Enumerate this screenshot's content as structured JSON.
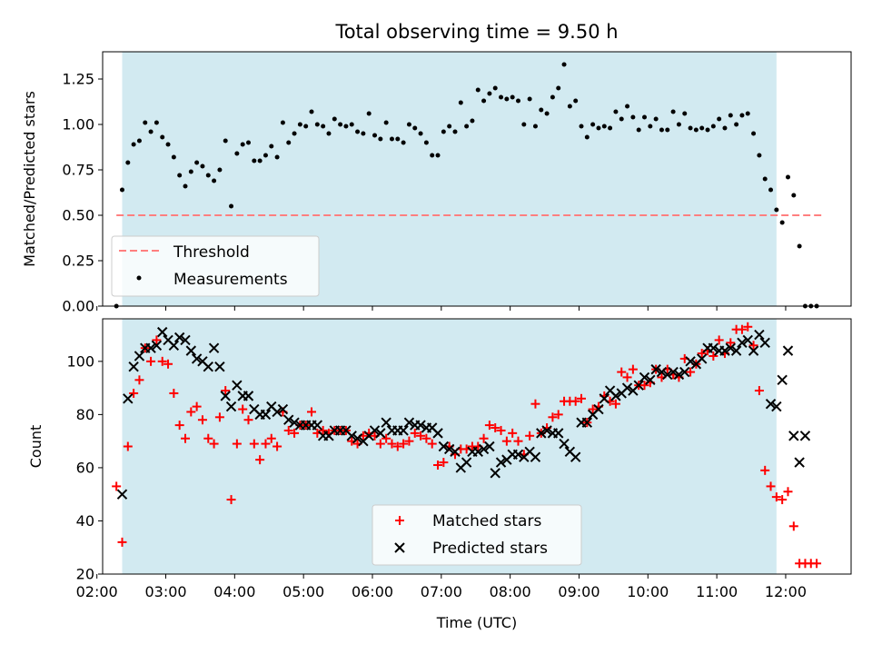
{
  "chart_data": [
    {
      "type": "scatter",
      "title": "Total observing time = 9.50 h",
      "xlabel": "",
      "ylabel": "Matched/Predicted stars",
      "xlim": [
        "02:05",
        "12:57"
      ],
      "ylim": [
        0,
        1.4
      ],
      "yticks": [
        0.0,
        0.25,
        0.5,
        0.75,
        1.0,
        1.25
      ],
      "ytick_labels": [
        "0.00",
        "0.25",
        "0.50",
        "0.75",
        "1.00",
        "1.25"
      ],
      "observing_window": [
        "02:22",
        "11:52"
      ],
      "window_color": "#add8e6",
      "threshold": {
        "name": "Threshold",
        "value": 0.5,
        "x_range": [
          "02:17",
          "12:32"
        ],
        "color": "#ff7f7f",
        "style": "dashed"
      },
      "legend": {
        "position": "lower-left",
        "entries": [
          "Threshold",
          "Measurements"
        ]
      },
      "series": [
        {
          "name": "Measurements",
          "color": "#000000",
          "marker": "dot",
          "x": [
            "02:17",
            "02:22",
            "02:27",
            "02:32",
            "02:37",
            "02:42",
            "02:47",
            "02:52",
            "02:57",
            "03:02",
            "03:07",
            "03:12",
            "03:17",
            "03:22",
            "03:27",
            "03:32",
            "03:37",
            "03:42",
            "03:47",
            "03:52",
            "03:57",
            "04:02",
            "04:07",
            "04:12",
            "04:17",
            "04:22",
            "04:27",
            "04:32",
            "04:37",
            "04:42",
            "04:47",
            "04:52",
            "04:57",
            "05:02",
            "05:07",
            "05:12",
            "05:17",
            "05:22",
            "05:27",
            "05:32",
            "05:37",
            "05:42",
            "05:47",
            "05:52",
            "05:57",
            "06:02",
            "06:07",
            "06:12",
            "06:17",
            "06:22",
            "06:27",
            "06:32",
            "06:37",
            "06:42",
            "06:47",
            "06:52",
            "06:57",
            "07:02",
            "07:07",
            "07:12",
            "07:17",
            "07:22",
            "07:27",
            "07:32",
            "07:37",
            "07:42",
            "07:47",
            "07:52",
            "07:57",
            "08:02",
            "08:07",
            "08:12",
            "08:17",
            "08:22",
            "08:27",
            "08:32",
            "08:37",
            "08:42",
            "08:47",
            "08:52",
            "08:57",
            "09:02",
            "09:07",
            "09:12",
            "09:17",
            "09:22",
            "09:27",
            "09:32",
            "09:37",
            "09:42",
            "09:47",
            "09:52",
            "09:57",
            "10:02",
            "10:07",
            "10:12",
            "10:17",
            "10:22",
            "10:27",
            "10:32",
            "10:37",
            "10:42",
            "10:47",
            "10:52",
            "10:57",
            "11:02",
            "11:07",
            "11:12",
            "11:17",
            "11:22",
            "11:27",
            "11:32",
            "11:37",
            "11:42",
            "11:47",
            "11:52",
            "11:57",
            "12:02",
            "12:07",
            "12:12",
            "12:17",
            "12:22",
            "12:27"
          ],
          "y": [
            0.0,
            0.64,
            0.79,
            0.89,
            0.91,
            1.01,
            0.96,
            1.01,
            0.93,
            0.89,
            0.82,
            0.72,
            0.66,
            0.74,
            0.79,
            0.77,
            0.72,
            0.69,
            0.75,
            0.91,
            0.55,
            0.84,
            0.89,
            0.9,
            0.8,
            0.8,
            0.83,
            0.88,
            0.82,
            1.01,
            0.9,
            0.95,
            1.0,
            0.99,
            1.07,
            1.0,
            0.99,
            0.95,
            1.03,
            1.0,
            0.99,
            1.0,
            0.96,
            0.95,
            1.06,
            0.94,
            0.92,
            1.01,
            0.92,
            0.92,
            0.9,
            1.0,
            0.98,
            0.95,
            0.9,
            0.83,
            0.83,
            0.96,
            0.99,
            0.96,
            1.12,
            0.99,
            1.02,
            1.19,
            1.13,
            1.17,
            1.2,
            1.15,
            1.14,
            1.15,
            1.13,
            1.0,
            1.14,
            0.99,
            1.08,
            1.06,
            1.15,
            1.2,
            1.33,
            1.1,
            1.13,
            0.99,
            0.93,
            1.0,
            0.98,
            0.99,
            0.98,
            1.07,
            1.03,
            1.1,
            1.04,
            0.97,
            1.04,
            0.99,
            1.03,
            0.97,
            0.97,
            1.07,
            1.0,
            1.06,
            0.98,
            0.97,
            0.98,
            0.97,
            0.99,
            1.03,
            0.98,
            1.05,
            1.0,
            1.05,
            1.06,
            0.95,
            0.83,
            0.7,
            0.64,
            0.53,
            0.46,
            0.71,
            0.61,
            0.33,
            0.0,
            0.0,
            0.0
          ]
        }
      ]
    },
    {
      "type": "scatter",
      "title": "",
      "xlabel": "Time (UTC)",
      "ylabel": "Count",
      "xlim": [
        "02:05",
        "12:57"
      ],
      "ylim": [
        20,
        116
      ],
      "yticks": [
        20,
        40,
        60,
        80,
        100
      ],
      "ytick_labels": [
        "20",
        "40",
        "60",
        "80",
        "100"
      ],
      "xticks": [
        "02:00",
        "03:00",
        "04:00",
        "05:00",
        "06:00",
        "07:00",
        "08:00",
        "09:00",
        "10:00",
        "11:00",
        "12:00"
      ],
      "observing_window": [
        "02:22",
        "11:52"
      ],
      "window_color": "#add8e6",
      "legend": {
        "position": "lower-center",
        "entries": [
          "Matched stars",
          "Predicted stars"
        ]
      },
      "series": [
        {
          "name": "Matched stars",
          "color": "#ff0000",
          "marker": "plus",
          "x": [
            "02:17",
            "02:22",
            "02:27",
            "02:32",
            "02:37",
            "02:42",
            "02:47",
            "02:52",
            "02:57",
            "03:02",
            "03:07",
            "03:12",
            "03:17",
            "03:22",
            "03:27",
            "03:32",
            "03:37",
            "03:42",
            "03:47",
            "03:52",
            "03:57",
            "04:02",
            "04:07",
            "04:12",
            "04:17",
            "04:22",
            "04:27",
            "04:32",
            "04:37",
            "04:42",
            "04:47",
            "04:52",
            "04:57",
            "05:02",
            "05:07",
            "05:12",
            "05:17",
            "05:22",
            "05:27",
            "05:32",
            "05:37",
            "05:42",
            "05:47",
            "05:52",
            "05:57",
            "06:02",
            "06:07",
            "06:12",
            "06:17",
            "06:22",
            "06:27",
            "06:32",
            "06:37",
            "06:42",
            "06:47",
            "06:52",
            "06:57",
            "07:02",
            "07:07",
            "07:12",
            "07:17",
            "07:22",
            "07:27",
            "07:32",
            "07:37",
            "07:42",
            "07:47",
            "07:52",
            "07:57",
            "08:02",
            "08:07",
            "08:12",
            "08:17",
            "08:22",
            "08:27",
            "08:32",
            "08:37",
            "08:42",
            "08:47",
            "08:52",
            "08:57",
            "09:02",
            "09:07",
            "09:12",
            "09:17",
            "09:22",
            "09:27",
            "09:32",
            "09:37",
            "09:42",
            "09:47",
            "09:52",
            "09:57",
            "10:02",
            "10:07",
            "10:12",
            "10:17",
            "10:22",
            "10:27",
            "10:32",
            "10:37",
            "10:42",
            "10:47",
            "10:52",
            "10:57",
            "11:02",
            "11:07",
            "11:12",
            "11:17",
            "11:22",
            "11:27",
            "11:32",
            "11:37",
            "11:42",
            "11:47",
            "11:52",
            "11:57",
            "12:02",
            "12:07",
            "12:12",
            "12:17",
            "12:22",
            "12:27"
          ],
          "y": [
            53,
            32,
            68,
            88,
            93,
            105,
            100,
            108,
            100,
            99,
            88,
            76,
            71,
            81,
            83,
            78,
            71,
            69,
            79,
            89,
            48,
            69,
            82,
            78,
            69,
            63,
            69,
            71,
            68,
            81,
            74,
            73,
            76,
            76,
            81,
            73,
            74,
            73,
            74,
            74,
            74,
            70,
            69,
            72,
            73,
            72,
            69,
            71,
            69,
            68,
            69,
            70,
            73,
            72,
            71,
            69,
            61,
            62,
            68,
            65,
            67,
            67,
            68,
            68,
            71,
            76,
            75,
            74,
            70,
            73,
            70,
            65,
            72,
            84,
            73,
            75,
            79,
            80,
            85,
            85,
            85,
            86,
            77,
            82,
            83,
            87,
            85,
            84,
            96,
            94,
            97,
            91,
            91,
            92,
            97,
            94,
            97,
            95,
            94,
            101,
            96,
            99,
            103,
            104,
            102,
            108,
            103,
            107,
            112,
            112,
            113,
            106,
            89,
            59,
            53,
            49,
            48,
            51,
            38,
            24,
            24,
            24,
            24
          ]
        },
        {
          "name": "Predicted stars",
          "color": "#000000",
          "marker": "x",
          "x": [
            "02:22",
            "02:27",
            "02:32",
            "02:37",
            "02:42",
            "02:47",
            "02:52",
            "02:57",
            "03:02",
            "03:07",
            "03:12",
            "03:17",
            "03:22",
            "03:27",
            "03:32",
            "03:37",
            "03:42",
            "03:47",
            "03:52",
            "03:57",
            "04:02",
            "04:07",
            "04:12",
            "04:17",
            "04:22",
            "04:27",
            "04:32",
            "04:37",
            "04:42",
            "04:47",
            "04:52",
            "04:57",
            "05:02",
            "05:07",
            "05:12",
            "05:17",
            "05:22",
            "05:27",
            "05:32",
            "05:37",
            "05:42",
            "05:47",
            "05:52",
            "05:57",
            "06:02",
            "06:07",
            "06:12",
            "06:17",
            "06:22",
            "06:27",
            "06:32",
            "06:37",
            "06:42",
            "06:47",
            "06:52",
            "06:57",
            "07:02",
            "07:07",
            "07:12",
            "07:17",
            "07:22",
            "07:27",
            "07:32",
            "07:37",
            "07:42",
            "07:47",
            "07:52",
            "07:57",
            "08:02",
            "08:07",
            "08:12",
            "08:17",
            "08:22",
            "08:27",
            "08:32",
            "08:37",
            "08:42",
            "08:47",
            "08:52",
            "08:57",
            "09:02",
            "09:07",
            "09:12",
            "09:17",
            "09:22",
            "09:27",
            "09:32",
            "09:37",
            "09:42",
            "09:47",
            "09:52",
            "09:57",
            "10:02",
            "10:07",
            "10:12",
            "10:17",
            "10:22",
            "10:27",
            "10:32",
            "10:37",
            "10:42",
            "10:47",
            "10:52",
            "10:57",
            "11:02",
            "11:07",
            "11:12",
            "11:17",
            "11:22",
            "11:27",
            "11:32",
            "11:37",
            "11:42",
            "11:47",
            "11:52",
            "11:57",
            "12:02",
            "12:07",
            "12:12",
            "12:17"
          ],
          "y": [
            50,
            86,
            98,
            102,
            105,
            105,
            106,
            111,
            108,
            106,
            109,
            108,
            104,
            101,
            100,
            98,
            105,
            98,
            87,
            83,
            91,
            87,
            87,
            82,
            80,
            80,
            83,
            81,
            82,
            78,
            77,
            76,
            76,
            76,
            76,
            72,
            72,
            74,
            74,
            74,
            72,
            71,
            70,
            72,
            74,
            73,
            77,
            74,
            74,
            74,
            77,
            76,
            76,
            75,
            75,
            73,
            68,
            67,
            66,
            60,
            62,
            66,
            66,
            67,
            68,
            58,
            62,
            63,
            65,
            65,
            64,
            66,
            64,
            73,
            74,
            73,
            73,
            69,
            66,
            64,
            77,
            77,
            80,
            82,
            86,
            89,
            87,
            88,
            90,
            89,
            91,
            94,
            93,
            97,
            96,
            95,
            96,
            95,
            96,
            100,
            99,
            101,
            105,
            105,
            104,
            104,
            105,
            104,
            107,
            108,
            104,
            110,
            107,
            84,
            83,
            93,
            104,
            72,
            62,
            72
          ]
        }
      ]
    }
  ]
}
